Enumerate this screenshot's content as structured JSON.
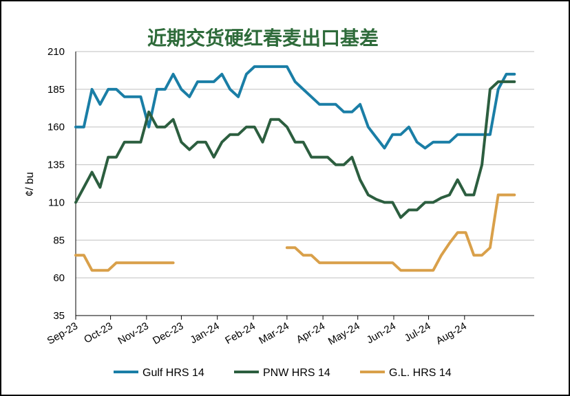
{
  "chart_data": {
    "type": "line",
    "title": "近期交货硬红春麦出口基差",
    "ylabel": "¢/ bu",
    "xlabel": "",
    "ylim": [
      35,
      210
    ],
    "yticks": [
      35,
      60,
      85,
      110,
      135,
      160,
      185,
      210
    ],
    "grid": true,
    "legend_position": "bottom",
    "xlim": [
      "2023-09-01",
      "2024-09-30"
    ],
    "x_tick_labels": [
      "Sep-23",
      "Oct-23",
      "Nov-23",
      "Dec-23",
      "Jan-24",
      "Feb-24",
      "Mar-24",
      "Apr-24",
      "May-24",
      "Jun-24",
      "Jul-24",
      "Aug-24"
    ],
    "x_tick_dates": [
      "2023-09-01",
      "2023-10-01",
      "2023-11-01",
      "2023-12-01",
      "2024-01-01",
      "2024-02-01",
      "2024-03-01",
      "2024-04-01",
      "2024-05-01",
      "2024-06-01",
      "2024-07-01",
      "2024-08-01"
    ],
    "colors": {
      "title": "#2e6b3a",
      "grid": "#bfbfbf",
      "axis": "#000000"
    },
    "series": [
      {
        "name": "Gulf HRS 14",
        "color": "#1a7ea6",
        "x": [
          "2023-09-01",
          "2023-09-08",
          "2023-09-15",
          "2023-09-22",
          "2023-09-29",
          "2023-10-06",
          "2023-10-13",
          "2023-10-20",
          "2023-10-27",
          "2023-11-03",
          "2023-11-10",
          "2023-11-17",
          "2023-11-24",
          "2023-12-01",
          "2023-12-08",
          "2023-12-15",
          "2023-12-22",
          "2023-12-29",
          "2024-01-05",
          "2024-01-12",
          "2024-01-19",
          "2024-01-26",
          "2024-02-02",
          "2024-02-09",
          "2024-02-16",
          "2024-02-23",
          "2024-03-01",
          "2024-03-08",
          "2024-03-15",
          "2024-03-22",
          "2024-03-29",
          "2024-04-05",
          "2024-04-12",
          "2024-04-19",
          "2024-04-26",
          "2024-05-03",
          "2024-05-10",
          "2024-05-17",
          "2024-05-24",
          "2024-05-31",
          "2024-06-07",
          "2024-06-14",
          "2024-06-21",
          "2024-06-28",
          "2024-07-05",
          "2024-07-12",
          "2024-07-19",
          "2024-07-26",
          "2024-08-02",
          "2024-08-09",
          "2024-08-16",
          "2024-08-23",
          "2024-08-30",
          "2024-09-06",
          "2024-09-13"
        ],
        "values": [
          160,
          160,
          185,
          175,
          185,
          185,
          180,
          180,
          180,
          160,
          185,
          185,
          195,
          185,
          180,
          190,
          190,
          190,
          195,
          185,
          180,
          195,
          200,
          200,
          200,
          200,
          200,
          190,
          185,
          180,
          175,
          175,
          175,
          170,
          170,
          175,
          160,
          153,
          146,
          155,
          155,
          160,
          150,
          146,
          150,
          150,
          150,
          155,
          155,
          155,
          155,
          155,
          185,
          195,
          195
        ]
      },
      {
        "name": "PNW HRS 14",
        "color": "#2c5e3f",
        "x": [
          "2023-09-01",
          "2023-09-08",
          "2023-09-15",
          "2023-09-22",
          "2023-09-29",
          "2023-10-06",
          "2023-10-13",
          "2023-10-20",
          "2023-10-27",
          "2023-11-03",
          "2023-11-10",
          "2023-11-17",
          "2023-11-24",
          "2023-12-01",
          "2023-12-08",
          "2023-12-15",
          "2023-12-22",
          "2023-12-29",
          "2024-01-05",
          "2024-01-12",
          "2024-01-19",
          "2024-01-26",
          "2024-02-02",
          "2024-02-09",
          "2024-02-16",
          "2024-02-23",
          "2024-03-01",
          "2024-03-08",
          "2024-03-15",
          "2024-03-22",
          "2024-03-29",
          "2024-04-05",
          "2024-04-12",
          "2024-04-19",
          "2024-04-26",
          "2024-05-03",
          "2024-05-10",
          "2024-05-17",
          "2024-05-24",
          "2024-05-31",
          "2024-06-07",
          "2024-06-14",
          "2024-06-21",
          "2024-06-28",
          "2024-07-05",
          "2024-07-12",
          "2024-07-19",
          "2024-07-26",
          "2024-08-02",
          "2024-08-09",
          "2024-08-16",
          "2024-08-23",
          "2024-08-30",
          "2024-09-06",
          "2024-09-13"
        ],
        "values": [
          110,
          120,
          130,
          120,
          140,
          140,
          150,
          150,
          150,
          170,
          160,
          160,
          165,
          150,
          145,
          150,
          150,
          140,
          150,
          155,
          155,
          160,
          160,
          150,
          165,
          165,
          160,
          150,
          150,
          140,
          140,
          140,
          135,
          135,
          140,
          125,
          115,
          112,
          110,
          110,
          100,
          105,
          105,
          110,
          110,
          113,
          115,
          125,
          115,
          115,
          135,
          185,
          190,
          190,
          190
        ]
      },
      {
        "name": "G.L. HRS 14",
        "color": "#d9a04a",
        "x": [
          "2023-09-01",
          "2023-09-08",
          "2023-09-15",
          "2023-09-22",
          "2023-09-29",
          "2023-10-06",
          "2023-10-13",
          "2023-10-20",
          "2023-10-27",
          "2023-11-03",
          "2023-11-10",
          "2023-11-17",
          "2023-11-24",
          null,
          "2024-03-01",
          "2024-03-08",
          "2024-03-15",
          "2024-03-22",
          "2024-03-29",
          "2024-04-05",
          "2024-04-12",
          "2024-04-19",
          "2024-04-26",
          "2024-05-03",
          "2024-05-10",
          "2024-05-17",
          "2024-05-24",
          "2024-05-31",
          "2024-06-07",
          "2024-06-14",
          "2024-06-21",
          "2024-06-28",
          "2024-07-05",
          "2024-07-12",
          "2024-07-19",
          "2024-07-26",
          "2024-08-02",
          "2024-08-09",
          "2024-08-16",
          "2024-08-23",
          "2024-08-30",
          "2024-09-06",
          "2024-09-13"
        ],
        "values": [
          75,
          75,
          65,
          65,
          65,
          70,
          70,
          70,
          70,
          70,
          70,
          70,
          70,
          null,
          80,
          80,
          75,
          75,
          70,
          70,
          70,
          70,
          70,
          70,
          70,
          70,
          70,
          70,
          65,
          65,
          65,
          65,
          65,
          75,
          83,
          90,
          90,
          75,
          75,
          80,
          115,
          115,
          115
        ]
      }
    ]
  }
}
